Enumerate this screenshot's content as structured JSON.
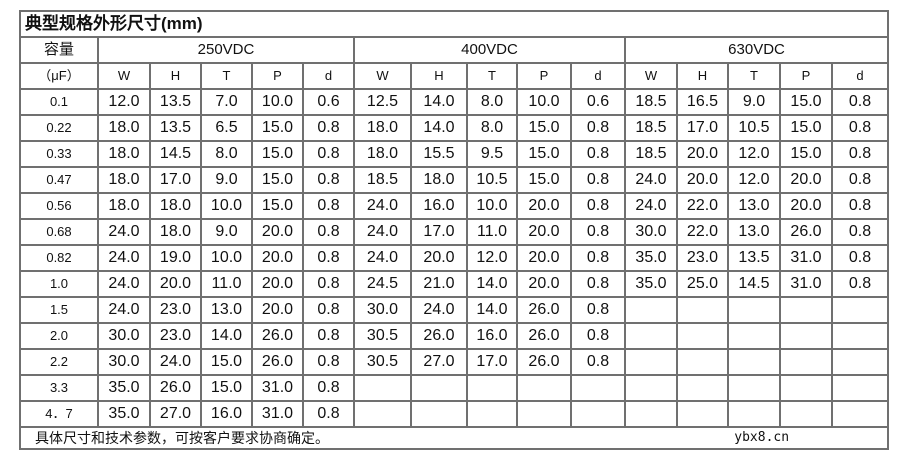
{
  "title": "典型规格外形尺寸(mm)",
  "capacity_label": "容量",
  "unit_label": "（μF）",
  "groups": [
    "250VDC",
    "400VDC",
    "630VDC"
  ],
  "sub_columns": [
    "W",
    "H",
    "T",
    "P",
    "d"
  ],
  "rows": [
    {
      "cap": "0.1",
      "values": [
        "12.0",
        "13.5",
        "7.0",
        "10.0",
        "0.6",
        "12.5",
        "14.0",
        "8.0",
        "10.0",
        "0.6",
        "18.5",
        "16.5",
        "9.0",
        "15.0",
        "0.8"
      ]
    },
    {
      "cap": "0.22",
      "values": [
        "18.0",
        "13.5",
        "6.5",
        "15.0",
        "0.8",
        "18.0",
        "14.0",
        "8.0",
        "15.0",
        "0.8",
        "18.5",
        "17.0",
        "10.5",
        "15.0",
        "0.8"
      ]
    },
    {
      "cap": "0.33",
      "values": [
        "18.0",
        "14.5",
        "8.0",
        "15.0",
        "0.8",
        "18.0",
        "15.5",
        "9.5",
        "15.0",
        "0.8",
        "18.5",
        "20.0",
        "12.0",
        "15.0",
        "0.8"
      ]
    },
    {
      "cap": "0.47",
      "values": [
        "18.0",
        "17.0",
        "9.0",
        "15.0",
        "0.8",
        "18.5",
        "18.0",
        "10.5",
        "15.0",
        "0.8",
        "24.0",
        "20.0",
        "12.0",
        "20.0",
        "0.8"
      ]
    },
    {
      "cap": "0.56",
      "values": [
        "18.0",
        "18.0",
        "10.0",
        "15.0",
        "0.8",
        "24.0",
        "16.0",
        "10.0",
        "20.0",
        "0.8",
        "24.0",
        "22.0",
        "13.0",
        "20.0",
        "0.8"
      ]
    },
    {
      "cap": "0.68",
      "values": [
        "24.0",
        "18.0",
        "9.0",
        "20.0",
        "0.8",
        "24.0",
        "17.0",
        "11.0",
        "20.0",
        "0.8",
        "30.0",
        "22.0",
        "13.0",
        "26.0",
        "0.8"
      ]
    },
    {
      "cap": "0.82",
      "values": [
        "24.0",
        "19.0",
        "10.0",
        "20.0",
        "0.8",
        "24.0",
        "20.0",
        "12.0",
        "20.0",
        "0.8",
        "35.0",
        "23.0",
        "13.5",
        "31.0",
        "0.8"
      ]
    },
    {
      "cap": "1.0",
      "values": [
        "24.0",
        "20.0",
        "11.0",
        "20.0",
        "0.8",
        "24.5",
        "21.0",
        "14.0",
        "20.0",
        "0.8",
        "35.0",
        "25.0",
        "14.5",
        "31.0",
        "0.8"
      ]
    },
    {
      "cap": "1.5",
      "values": [
        "24.0",
        "23.0",
        "13.0",
        "20.0",
        "0.8",
        "30.0",
        "24.0",
        "14.0",
        "26.0",
        "0.8",
        "",
        "",
        "",
        "",
        ""
      ]
    },
    {
      "cap": "2.0",
      "values": [
        "30.0",
        "23.0",
        "14.0",
        "26.0",
        "0.8",
        "30.5",
        "26.0",
        "16.0",
        "26.0",
        "0.8",
        "",
        "",
        "",
        "",
        ""
      ]
    },
    {
      "cap": "2.2",
      "values": [
        "30.0",
        "24.0",
        "15.0",
        "26.0",
        "0.8",
        "30.5",
        "27.0",
        "17.0",
        "26.0",
        "0.8",
        "",
        "",
        "",
        "",
        ""
      ]
    },
    {
      "cap": "3.3",
      "values": [
        "35.0",
        "26.0",
        "15.0",
        "31.0",
        "0.8",
        "",
        "",
        "",
        "",
        "",
        "",
        "",
        "",
        "",
        ""
      ]
    },
    {
      "cap": "4．7",
      "values": [
        "35.0",
        "27.0",
        "16.0",
        "31.0",
        "0.8",
        "",
        "",
        "",
        "",
        "",
        "",
        "",
        "",
        "",
        ""
      ]
    }
  ],
  "footer_note": "具体尺寸和技术参数，可按客户要求协商确定。",
  "watermark": "ybx8.cn"
}
